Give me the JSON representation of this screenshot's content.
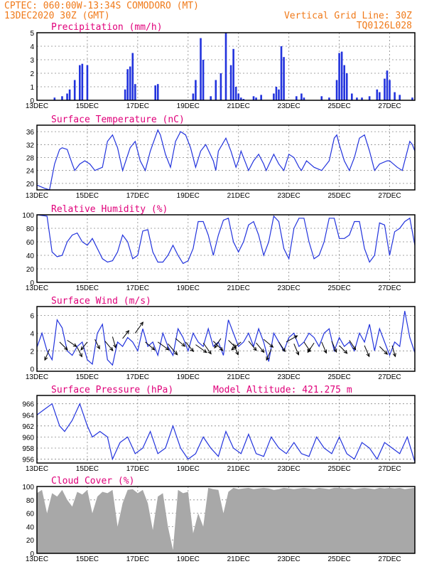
{
  "header": {
    "line1": "CPTEC:   060:00W-13:34S   COMODORO (MT)",
    "line2": "13DEC2020 30Z (GMT)",
    "right1": "Vertical Grid Line: 30Z",
    "right2": "TQ0126L028"
  },
  "x_tick_labels": [
    "13DEC",
    "15DEC",
    "17DEC",
    "19DEC",
    "21DEC",
    "23DEC",
    "25DEC",
    "27DEC"
  ],
  "colors": {
    "title": "#e0007a",
    "header": "#f07a1a",
    "series": "#2233dd",
    "cloud": "#a8a8a8"
  },
  "chart_data": [
    {
      "type": "bar",
      "title": "Precipitation (mm/h)",
      "x_range_days": [
        13.0,
        28.0
      ],
      "ylim": [
        0,
        5
      ],
      "yticks": [
        "0",
        "1",
        "2",
        "3",
        "4",
        "5"
      ],
      "x": [
        13.7,
        14.0,
        14.2,
        14.3,
        14.5,
        14.7,
        14.8,
        15.0,
        16.5,
        16.6,
        16.7,
        16.8,
        16.9,
        17.7,
        17.8,
        19.2,
        19.3,
        19.5,
        19.6,
        19.9,
        20.1,
        20.3,
        20.5,
        20.7,
        20.8,
        20.9,
        21.0,
        21.1,
        21.2,
        21.6,
        21.7,
        21.9,
        22.4,
        22.5,
        22.6,
        22.7,
        22.8,
        23.3,
        23.5,
        23.6,
        24.3,
        24.6,
        24.9,
        25.0,
        25.1,
        25.2,
        25.3,
        25.5,
        25.7,
        25.9,
        26.2,
        26.5,
        26.6,
        26.8,
        26.9,
        27.0,
        27.2,
        27.4,
        27.9
      ],
      "values": [
        0.2,
        0.3,
        0.5,
        0.8,
        1.5,
        2.6,
        2.7,
        2.6,
        0.8,
        2.3,
        2.5,
        3.5,
        1.2,
        1.1,
        1.2,
        0.5,
        1.5,
        4.6,
        3.0,
        0.3,
        1.5,
        2.0,
        5.0,
        2.6,
        3.8,
        1.0,
        0.5,
        0.2,
        0.1,
        0.3,
        0.2,
        0.4,
        0.5,
        1.0,
        0.8,
        4.0,
        3.2,
        0.3,
        0.5,
        0.2,
        0.3,
        0.2,
        1.5,
        3.5,
        3.6,
        2.6,
        2.0,
        0.5,
        0.2,
        0.2,
        0.3,
        0.8,
        0.6,
        1.6,
        2.2,
        1.5,
        0.6,
        0.4,
        0.2
      ]
    },
    {
      "type": "line",
      "title": "Surface Temperature (nC)",
      "x_range_days": [
        13.0,
        28.0
      ],
      "ylim": [
        18,
        38
      ],
      "yticks": [
        "20",
        "24",
        "28",
        "32",
        "36"
      ],
      "x": [
        13.0,
        13.3,
        13.5,
        13.7,
        13.9,
        14.0,
        14.2,
        14.4,
        14.5,
        14.7,
        14.9,
        15.1,
        15.3,
        15.6,
        15.8,
        16.0,
        16.2,
        16.4,
        16.7,
        16.9,
        17.1,
        17.3,
        17.5,
        17.8,
        17.9,
        18.1,
        18.3,
        18.5,
        18.7,
        18.9,
        19.1,
        19.3,
        19.5,
        19.7,
        20.0,
        20.1,
        20.2,
        20.5,
        20.7,
        20.9,
        21.0,
        21.1,
        21.4,
        21.6,
        21.8,
        22.0,
        22.1,
        22.4,
        22.6,
        22.8,
        23.0,
        23.2,
        23.4,
        23.5,
        23.7,
        24.0,
        24.3,
        24.6,
        24.8,
        24.9,
        25.0,
        25.2,
        25.4,
        25.6,
        25.8,
        26.0,
        26.2,
        26.4,
        26.6,
        26.9,
        27.0,
        27.3,
        27.5,
        27.8,
        27.9,
        28.0
      ],
      "values": [
        19.5,
        18.5,
        18,
        26,
        30.5,
        31,
        30.5,
        26,
        24,
        26,
        27,
        26,
        24,
        25,
        33,
        35,
        31,
        24,
        31,
        33,
        27,
        24,
        30,
        36.5,
        35,
        29,
        25,
        33,
        36,
        35,
        31,
        25,
        30,
        32,
        27,
        24,
        30,
        34,
        30,
        25,
        27,
        30,
        24,
        27,
        29,
        26,
        24,
        29,
        26,
        24,
        29,
        28,
        25,
        24,
        27,
        25,
        24,
        27,
        34,
        35,
        32,
        27,
        24,
        28,
        34,
        35,
        30,
        24,
        26,
        27,
        27,
        25,
        24,
        33,
        32,
        30
      ]
    },
    {
      "type": "line",
      "title": "Relative Humidity (%)",
      "x_range_days": [
        13.0,
        28.0
      ],
      "ylim": [
        0,
        100
      ],
      "yticks": [
        "0",
        "20",
        "40",
        "60",
        "80",
        "100"
      ],
      "x": [
        13.0,
        13.4,
        13.6,
        13.8,
        14.0,
        14.2,
        14.4,
        14.6,
        14.8,
        15.0,
        15.2,
        15.4,
        15.6,
        15.8,
        16.0,
        16.2,
        16.4,
        16.6,
        16.8,
        17.0,
        17.2,
        17.4,
        17.6,
        17.8,
        18.0,
        18.2,
        18.4,
        18.6,
        18.8,
        19.0,
        19.2,
        19.4,
        19.6,
        19.8,
        20.0,
        20.2,
        20.4,
        20.6,
        20.8,
        21.0,
        21.2,
        21.4,
        21.6,
        21.8,
        22.0,
        22.2,
        22.4,
        22.6,
        22.8,
        23.0,
        23.2,
        23.4,
        23.6,
        23.8,
        24.0,
        24.2,
        24.4,
        24.6,
        24.8,
        25.0,
        25.2,
        25.4,
        25.6,
        25.8,
        26.0,
        26.2,
        26.4,
        26.6,
        26.8,
        27.0,
        27.2,
        27.4,
        27.6,
        27.8,
        28.0
      ],
      "values": [
        100,
        98,
        45,
        38,
        40,
        60,
        70,
        73,
        60,
        55,
        65,
        50,
        35,
        30,
        32,
        45,
        70,
        60,
        35,
        40,
        76,
        78,
        45,
        30,
        30,
        40,
        55,
        40,
        28,
        32,
        50,
        90,
        90,
        70,
        40,
        70,
        92,
        95,
        60,
        45,
        60,
        85,
        90,
        70,
        40,
        60,
        98,
        90,
        50,
        35,
        80,
        95,
        95,
        60,
        35,
        40,
        60,
        95,
        95,
        65,
        65,
        70,
        90,
        90,
        50,
        30,
        40,
        88,
        85,
        40,
        75,
        80,
        90,
        95,
        55
      ]
    },
    {
      "type": "line",
      "title": "Surface Wind (m/s)",
      "x_range_days": [
        13.0,
        28.0
      ],
      "ylim": [
        -0.3,
        7
      ],
      "yticks": [
        "0",
        "2",
        "4",
        "6"
      ],
      "x": [
        13.0,
        13.2,
        13.4,
        13.6,
        13.8,
        14.0,
        14.2,
        14.4,
        14.6,
        14.8,
        15.0,
        15.2,
        15.4,
        15.6,
        15.8,
        16.0,
        16.2,
        16.4,
        16.6,
        16.8,
        17.0,
        17.2,
        17.4,
        17.6,
        17.8,
        18.0,
        18.2,
        18.4,
        18.6,
        18.8,
        19.0,
        19.2,
        19.4,
        19.6,
        19.8,
        20.0,
        20.2,
        20.4,
        20.6,
        20.8,
        21.0,
        21.2,
        21.4,
        21.6,
        21.8,
        22.0,
        22.2,
        22.4,
        22.6,
        22.8,
        23.0,
        23.2,
        23.4,
        23.6,
        23.8,
        24.0,
        24.2,
        24.4,
        24.6,
        24.8,
        25.0,
        25.2,
        25.4,
        25.6,
        25.8,
        26.0,
        26.2,
        26.4,
        26.6,
        26.8,
        27.0,
        27.2,
        27.4,
        27.6,
        27.8,
        28.0
      ],
      "values": [
        2.4,
        4.0,
        2.0,
        1.0,
        5.5,
        4.6,
        2.0,
        1.5,
        2.5,
        3.0,
        1.0,
        0.5,
        4.0,
        5.0,
        1.0,
        0.4,
        3.0,
        2.5,
        3.5,
        3.0,
        2.0,
        4.5,
        2.5,
        3.0,
        1.5,
        4.0,
        2.5,
        1.5,
        4.5,
        3.5,
        2.0,
        4.0,
        3.0,
        2.5,
        4.5,
        2.5,
        3.0,
        1.5,
        5.5,
        4.0,
        2.5,
        3.0,
        4.0,
        2.5,
        4.5,
        3.0,
        0.8,
        4.0,
        3.0,
        2.0,
        3.5,
        4.0,
        2.5,
        3.0,
        4.0,
        3.5,
        2.5,
        4.0,
        4.5,
        2.0,
        3.5,
        2.5,
        3.0,
        2.0,
        4.0,
        3.0,
        5.0,
        2.0,
        4.5,
        3.0,
        1.5,
        3.0,
        2.5,
        6.5,
        3.5,
        1.8
      ],
      "arrows_u": [
        -0.3,
        0.5,
        0.6,
        0.3,
        -0.4,
        0.3,
        0.5,
        0.2,
        0.4,
        0.5,
        0.6,
        0.7,
        0.6,
        0.6,
        0.5,
        0.7,
        0.5,
        0.6,
        -0.4,
        0.5,
        0.3,
        -0.6,
        0.5,
        0.5,
        0.6,
        -0.3,
        0.4,
        0.7,
        0.3,
        0.4,
        -0.4,
        0.3,
        0.3,
        0.5,
        0.4,
        0.3,
        0.5,
        0.2
      ],
      "arrows_v": [
        -0.7,
        -0.5,
        -0.4,
        -0.6,
        -0.5,
        -0.6,
        -0.6,
        -0.7,
        0.5,
        0.7,
        -0.5,
        -0.5,
        -0.7,
        -0.5,
        -0.6,
        -0.5,
        -0.7,
        -0.6,
        -0.6,
        -0.5,
        -0.7,
        -0.5,
        -0.6,
        -0.6,
        -0.5,
        -0.7,
        -0.6,
        0.4,
        -0.7,
        -0.6,
        -0.6,
        -0.7,
        -0.7,
        -0.5,
        -0.6,
        -0.7,
        -0.5,
        -0.7
      ],
      "arrows_x": [
        13.5,
        13.9,
        14.2,
        14.6,
        15.0,
        15.3,
        15.7,
        16.0,
        16.4,
        16.9,
        17.3,
        17.8,
        18.2,
        18.5,
        18.9,
        19.3,
        19.6,
        20.0,
        20.3,
        20.6,
        20.8,
        21.1,
        21.4,
        21.7,
        22.0,
        22.3,
        22.6,
        22.9,
        23.2,
        23.6,
        24.0,
        24.3,
        24.7,
        25.0,
        25.4,
        26.0,
        26.6,
        27.1
      ],
      "arrows_y": [
        2.2,
        3.0,
        3.2,
        2.4,
        3.0,
        3.3,
        3.1,
        3.6,
        3.4,
        4.0,
        3.0,
        3.0,
        2.8,
        3.4,
        3.0,
        2.7,
        2.9,
        3.1,
        3.4,
        3.2,
        2.8,
        3.0,
        3.1,
        2.9,
        3.3,
        2.2,
        3.0,
        3.0,
        2.8,
        3.0,
        2.9,
        3.0,
        3.1,
        2.6,
        3.2,
        2.6,
        2.5,
        2.6
      ]
    },
    {
      "type": "line",
      "title": "Surface Pressure (hPa)",
      "annotation": "Model Altitude: 421.275 m",
      "x_range_days": [
        13.0,
        28.0
      ],
      "ylim": [
        955.3,
        967.5
      ],
      "yticks": [
        "956",
        "958",
        "960",
        "962",
        "964",
        "966"
      ],
      "x": [
        13.0,
        13.3,
        13.6,
        13.9,
        14.1,
        14.4,
        14.7,
        15.0,
        15.2,
        15.5,
        15.8,
        16.0,
        16.3,
        16.6,
        16.9,
        17.2,
        17.5,
        17.8,
        18.1,
        18.4,
        18.7,
        19.0,
        19.3,
        19.6,
        19.9,
        20.2,
        20.5,
        20.8,
        21.1,
        21.4,
        21.7,
        22.0,
        22.3,
        22.6,
        22.9,
        23.2,
        23.5,
        23.8,
        24.1,
        24.4,
        24.7,
        25.0,
        25.3,
        25.6,
        25.9,
        26.2,
        26.5,
        26.8,
        27.1,
        27.4,
        27.7,
        28.0
      ],
      "values": [
        964,
        965,
        966,
        962,
        961,
        963,
        966,
        962,
        960,
        961,
        960,
        956,
        959,
        960,
        957,
        958,
        961,
        957,
        958,
        962,
        958,
        956,
        957,
        960,
        958,
        956.5,
        961,
        958,
        957,
        960.5,
        957,
        956.5,
        960,
        958,
        957,
        959,
        957,
        956.5,
        960,
        958,
        957,
        960,
        957,
        956,
        959,
        958,
        956,
        959,
        958,
        957,
        960,
        955.5
      ]
    },
    {
      "type": "area",
      "title": "Cloud Cover (%)",
      "x_range_days": [
        13.0,
        28.0
      ],
      "ylim": [
        0,
        100
      ],
      "yticks": [
        "0",
        "20",
        "40",
        "60",
        "80",
        "100"
      ],
      "x": [
        13.0,
        13.2,
        13.4,
        13.6,
        13.8,
        14.0,
        14.2,
        14.4,
        14.6,
        14.8,
        15.0,
        15.2,
        15.4,
        15.6,
        15.8,
        16.0,
        16.2,
        16.4,
        16.6,
        16.8,
        17.0,
        17.2,
        17.4,
        17.6,
        17.8,
        18.0,
        18.2,
        18.4,
        18.6,
        18.8,
        19.0,
        19.2,
        19.4,
        19.6,
        19.8,
        20.0,
        20.2,
        20.4,
        20.6,
        20.8,
        21.0,
        21.2,
        21.4,
        21.6,
        21.8,
        22.0,
        22.2,
        22.4,
        22.6,
        22.8,
        23.0,
        23.2,
        23.4,
        23.6,
        23.8,
        24.0,
        24.2,
        24.4,
        24.6,
        24.8,
        25.0,
        25.2,
        25.4,
        25.6,
        25.8,
        26.0,
        26.2,
        26.4,
        26.6,
        26.8,
        27.0,
        27.2,
        27.4,
        27.6,
        27.8,
        28.0
      ],
      "values": [
        90,
        95,
        60,
        90,
        85,
        95,
        80,
        70,
        92,
        88,
        95,
        60,
        85,
        92,
        90,
        95,
        40,
        75,
        95,
        96,
        90,
        95,
        75,
        35,
        85,
        90,
        40,
        5,
        95,
        90,
        92,
        30,
        60,
        40,
        98,
        96,
        95,
        60,
        92,
        98,
        96,
        97,
        98,
        96,
        97,
        98,
        97,
        95,
        96,
        98,
        97,
        96,
        97,
        98,
        97,
        96,
        98,
        97,
        96,
        98,
        98,
        97,
        98,
        96,
        97,
        98,
        97,
        96,
        98,
        97,
        98,
        97,
        98,
        96,
        97,
        98
      ]
    }
  ]
}
